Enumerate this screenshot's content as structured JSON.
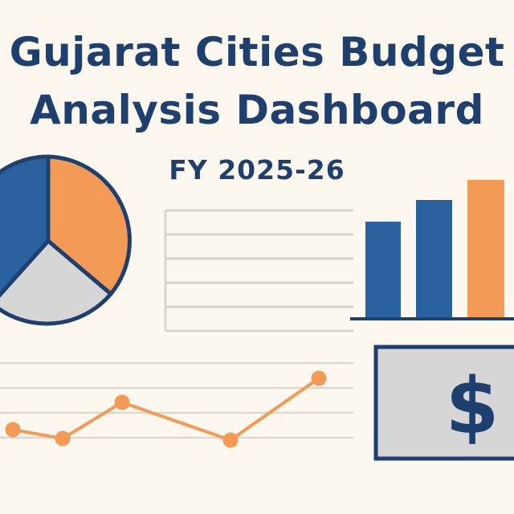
{
  "header": {
    "title_line1": "Gujarat Cities Budget",
    "title_line2": "Analysis Dashboard",
    "subtitle": "FY 2025-26"
  },
  "money_card": {
    "symbol": "$"
  },
  "colors": {
    "navy": "#1f3f6e",
    "blue": "#2a62a0",
    "orange": "#f29a56",
    "gray": "#d6d6d6",
    "line": "#dcd8d0",
    "background": "#fcf8f0"
  }
}
